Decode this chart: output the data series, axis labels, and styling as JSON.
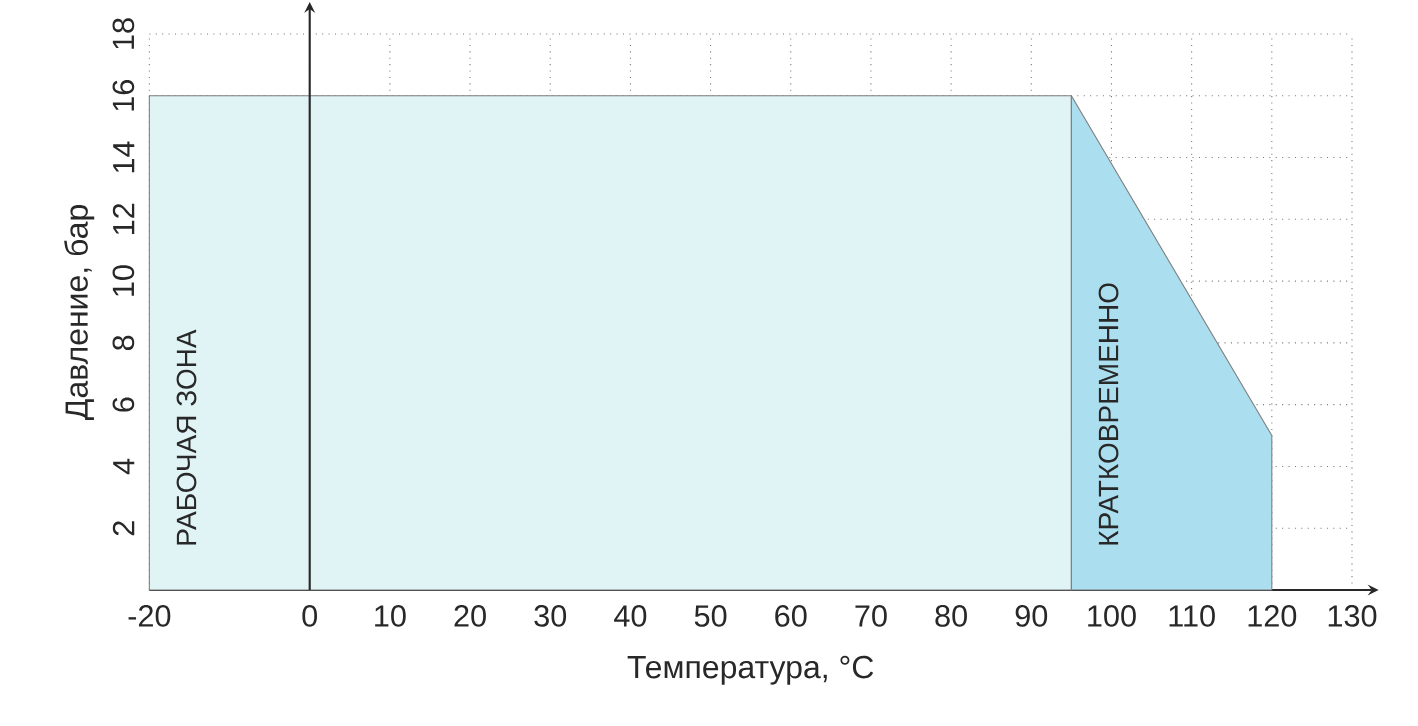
{
  "chart_data": {
    "type": "area",
    "xlabel": "Температура, °C",
    "ylabel": "Давление, бар",
    "series": [
      {
        "name": "РАБОЧАЯ ЗОНА",
        "color": "#e0f3f5",
        "x": [
          -20,
          95
        ],
        "values": [
          16,
          16
        ]
      },
      {
        "name": "КРАТКОВРЕМЕННО",
        "color": "#abdeef",
        "x": [
          95,
          120
        ],
        "values": [
          16,
          5
        ]
      }
    ],
    "xlim": [
      -20,
      130
    ],
    "xticks": [
      -20,
      0,
      10,
      20,
      30,
      40,
      50,
      60,
      70,
      80,
      90,
      100,
      110,
      120,
      130
    ],
    "ylim": [
      0,
      18
    ],
    "yticks": [
      2,
      4,
      6,
      8,
      10,
      12,
      14,
      16,
      18
    ],
    "grid": true,
    "line_style": "solid"
  }
}
